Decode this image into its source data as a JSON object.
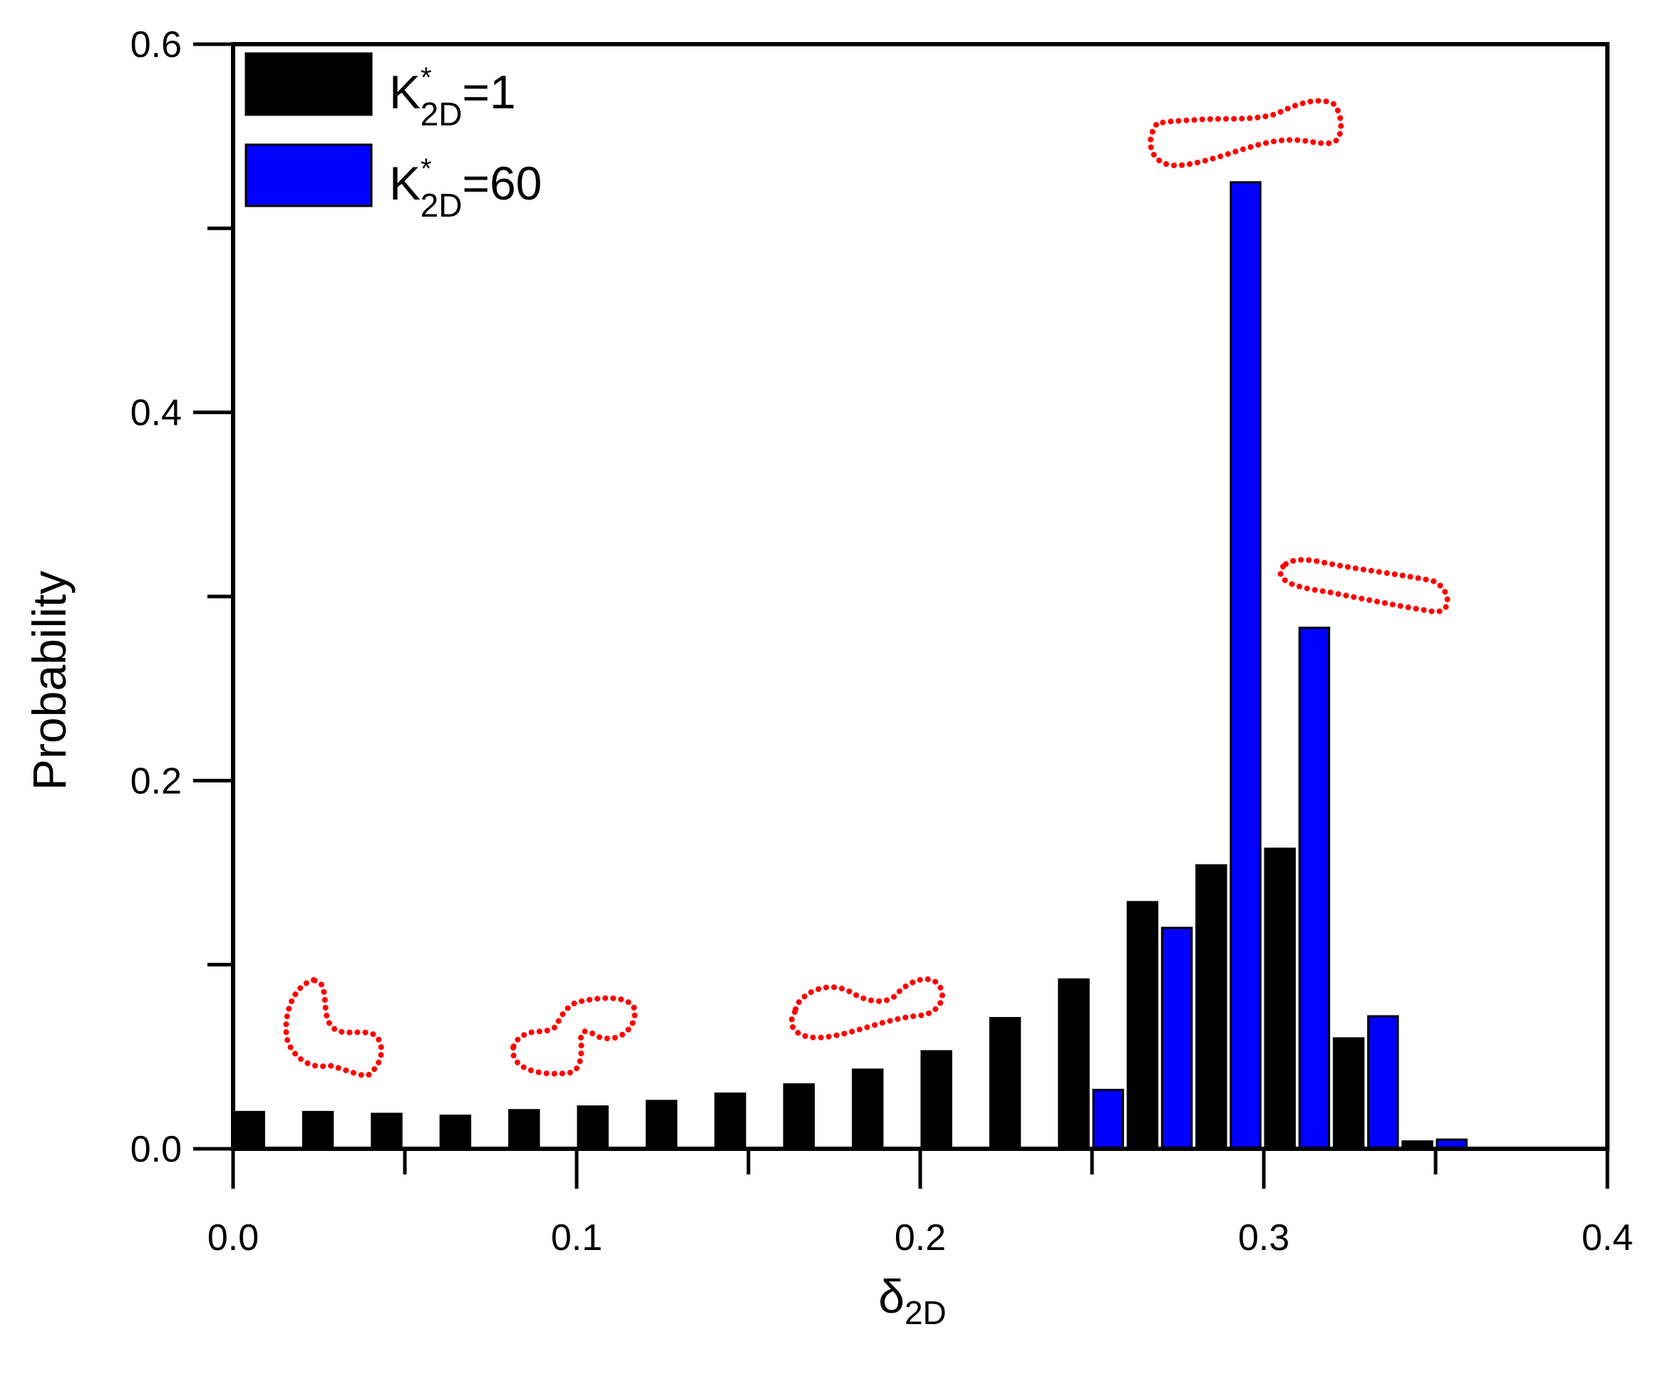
{
  "chart_data": {
    "type": "bar",
    "xlabel": {
      "main": "δ",
      "sub": "2D"
    },
    "ylabel": "Probability",
    "xlim": [
      0.0,
      0.4
    ],
    "ylim": [
      0.0,
      0.6
    ],
    "x_ticks_major": [
      0.0,
      0.1,
      0.2,
      0.3,
      0.4
    ],
    "x_tick_labels": [
      "0.0",
      "0.1",
      "0.2",
      "0.3",
      "0.4"
    ],
    "x_ticks_minor": [
      0.05,
      0.15,
      0.25,
      0.35
    ],
    "y_ticks_major": [
      0.0,
      0.2,
      0.4,
      0.6
    ],
    "y_tick_labels": [
      "0.0",
      "0.2",
      "0.4",
      "0.6"
    ],
    "y_ticks_minor": [
      0.1,
      0.3,
      0.5
    ],
    "grid": false,
    "legend_position": "top-left",
    "bin_width": 0.02,
    "bin_starts": [
      0.0,
      0.02,
      0.04,
      0.06,
      0.08,
      0.1,
      0.12,
      0.14,
      0.16,
      0.18,
      0.2,
      0.22,
      0.24,
      0.26,
      0.28,
      0.3,
      0.32,
      0.34
    ],
    "series": [
      {
        "legend": {
          "base": "K",
          "sup": "*",
          "sub": "2D",
          "suffix": "=1"
        },
        "color": "#000000",
        "values": [
          0.02,
          0.02,
          0.019,
          0.018,
          0.021,
          0.023,
          0.026,
          0.03,
          0.035,
          0.043,
          0.053,
          0.071,
          0.092,
          0.134,
          0.154,
          0.163,
          0.06,
          0.004
        ]
      },
      {
        "legend": {
          "base": "K",
          "sup": "*",
          "sub": "2D",
          "suffix": "=60"
        },
        "color": "#0000ff",
        "values": [
          0,
          0,
          0,
          0,
          0,
          0,
          0,
          0,
          0,
          0,
          0,
          0,
          0.032,
          0.12,
          0.525,
          0.283,
          0.072,
          0.005
        ]
      }
    ],
    "shape_insets": [
      {
        "name": "shape-kidney",
        "near_x": 0.025,
        "near_y": 0.08,
        "color": "#ff0000"
      },
      {
        "name": "shape-s-curve",
        "near_x": 0.1,
        "near_y": 0.07,
        "color": "#ff0000"
      },
      {
        "name": "shape-peanut",
        "near_x": 0.18,
        "near_y": 0.075,
        "color": "#ff0000"
      },
      {
        "name": "shape-elongated-peanut",
        "near_x": 0.295,
        "near_y": 0.55,
        "color": "#ff0000"
      },
      {
        "name": "shape-elongated-ellipse",
        "near_x": 0.315,
        "near_y": 0.305,
        "color": "#ff0000"
      }
    ]
  }
}
